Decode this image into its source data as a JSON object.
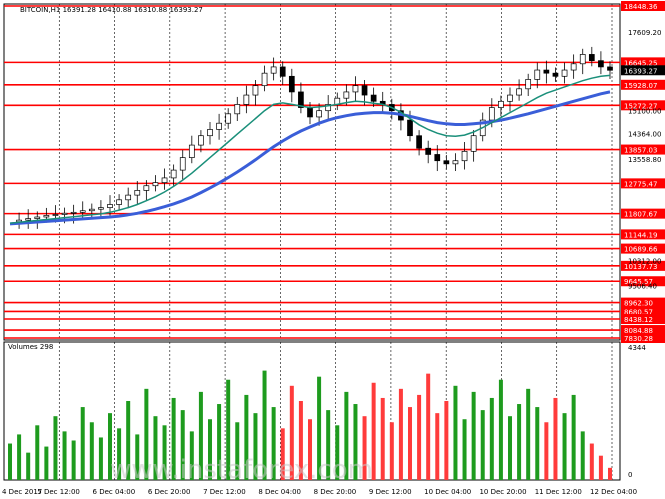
{
  "header": {
    "symbol_line": "BITCOIN,H1  16391.28 16410.88 16310.88 16393.27"
  },
  "volumes_label": "Volumes 298",
  "watermark": "www.instaforex.com",
  "colors": {
    "level_line": "#ff0000",
    "bull_candle": "#ffffff",
    "bear_candle": "#000000",
    "ma_fast": "#1a8f7a",
    "ma_slow": "#3a5ed8",
    "volume_up": "#1e9b1e",
    "volume_down": "#ff3b3b",
    "current_label": "#000000"
  },
  "chart_data": {
    "type": "candlestick",
    "price_axis": {
      "min": 7830.28,
      "max": 18448.36,
      "ticks": [
        {
          "value": 17609.2,
          "label": "17609.20"
        },
        {
          "value": 15100.0,
          "label": "15100.00"
        },
        {
          "value": 14364.0,
          "label": "14364.00"
        },
        {
          "value": 13558.8,
          "label": "13558.80"
        },
        {
          "value": 10312.0,
          "label": "10312.00"
        },
        {
          "value": 9506.4,
          "label": "9506.40"
        }
      ]
    },
    "levels": [
      {
        "value": 18448.36,
        "label": "18448.36"
      },
      {
        "value": 16645.25,
        "label": "16645.25"
      },
      {
        "value": 15928.07,
        "label": "15928.07"
      },
      {
        "value": 15272.27,
        "label": "15272.27"
      },
      {
        "value": 13857.03,
        "label": "13857.03"
      },
      {
        "value": 12775.47,
        "label": "12775.47"
      },
      {
        "value": 11807.67,
        "label": "11807.67"
      },
      {
        "value": 11144.19,
        "label": "11144.19"
      },
      {
        "value": 10689.66,
        "label": "10689.66"
      },
      {
        "value": 10137.73,
        "label": "10137.73"
      },
      {
        "value": 9645.57,
        "label": "9645.57"
      },
      {
        "value": 8962.3,
        "label": "8962.30"
      },
      {
        "value": 8680.57,
        "label": "8680.57"
      },
      {
        "value": 8438.12,
        "label": "8438.12"
      },
      {
        "value": 8084.88,
        "label": "8084.88"
      },
      {
        "value": 7830.28,
        "label": "7830.28"
      }
    ],
    "current_price": {
      "value": 16393.27,
      "label": "16393.27"
    },
    "time_axis": [
      "4 Dec 2017",
      "5 Dec 12:00",
      "6 Dec 04:00",
      "6 Dec 20:00",
      "7 Dec 12:00",
      "8 Dec 04:00",
      "8 Dec 20:00",
      "9 Dec 12:00",
      "10 Dec 04:00",
      "10 Dec 20:00",
      "11 Dec 12:00",
      "12 Dec 04:00"
    ],
    "price_path": [
      11550,
      11600,
      11650,
      11700,
      11750,
      11780,
      11820,
      11850,
      11900,
      11950,
      12000,
      12100,
      12250,
      12400,
      12550,
      12700,
      12800,
      12950,
      13200,
      13600,
      14000,
      14300,
      14500,
      14700,
      15000,
      15300,
      15600,
      15900,
      16300,
      16500,
      16200,
      15700,
      15200,
      14900,
      15100,
      15300,
      15500,
      15700,
      15900,
      15600,
      15400,
      15300,
      15100,
      14800,
      14300,
      13900,
      13700,
      13500,
      13400,
      13500,
      13800,
      14300,
      14800,
      15200,
      15400,
      15600,
      15800,
      16100,
      16400,
      16300,
      16200,
      16400,
      16600,
      16900,
      16700,
      16500,
      16393
    ],
    "ma_fast": [
      11500,
      11530,
      11560,
      11590,
      11620,
      11650,
      11680,
      11710,
      11740,
      11770,
      11800,
      11850,
      11920,
      12000,
      12100,
      12220,
      12350,
      12500,
      12680,
      12880,
      13100,
      13350,
      13600,
      13850,
      14100,
      14350,
      14600,
      14850,
      15100,
      15300,
      15350,
      15300,
      15250,
      15200,
      15220,
      15260,
      15300,
      15360,
      15400,
      15380,
      15340,
      15300,
      15200,
      15050,
      14850,
      14650,
      14500,
      14380,
      14300,
      14280,
      14320,
      14420,
      14560,
      14720,
      14880,
      15040,
      15200,
      15360,
      15520,
      15660,
      15760,
      15860,
      15960,
      16060,
      16140,
      16200,
      16230
    ],
    "ma_slow": [
      11480,
      11500,
      11520,
      11540,
      11560,
      11580,
      11600,
      11620,
      11640,
      11660,
      11680,
      11700,
      11730,
      11770,
      11820,
      11880,
      11950,
      12030,
      12120,
      12220,
      12340,
      12480,
      12630,
      12790,
      12960,
      13140,
      13330,
      13530,
      13740,
      13950,
      14130,
      14300,
      14450,
      14580,
      14700,
      14800,
      14880,
      14940,
      14990,
      15020,
      15040,
      15040,
      15020,
      14980,
      14920,
      14850,
      14780,
      14720,
      14680,
      14660,
      14660,
      14680,
      14710,
      14750,
      14800,
      14860,
      14930,
      15000,
      15080,
      15160,
      15240,
      15320,
      15400,
      15480,
      15560,
      15640,
      15700
    ],
    "volume_axis": {
      "max": 4344,
      "ticks": [
        {
          "value": 4344,
          "label": "4344"
        },
        {
          "value": 0,
          "label": "0"
        }
      ]
    },
    "volumes": [
      1200,
      1500,
      900,
      1800,
      1100,
      2100,
      1600,
      1300,
      2400,
      1900,
      1400,
      2200,
      1700,
      2600,
      1500,
      3000,
      2100,
      1800,
      2700,
      2300,
      1600,
      2900,
      2000,
      2500,
      3300,
      1900,
      2800,
      2200,
      3600,
      2400,
      1700,
      3100,
      2600,
      2000,
      3400,
      2300,
      1800,
      2900,
      2500,
      2100,
      3200,
      2700,
      1900,
      3000,
      2400,
      2800,
      3500,
      2200,
      2600,
      3100,
      2000,
      2900,
      2300,
      2700,
      3300,
      2100,
      2500,
      3000,
      2400,
      1900,
      2700,
      2200,
      2800,
      1600,
      1200,
      800,
      400
    ]
  }
}
